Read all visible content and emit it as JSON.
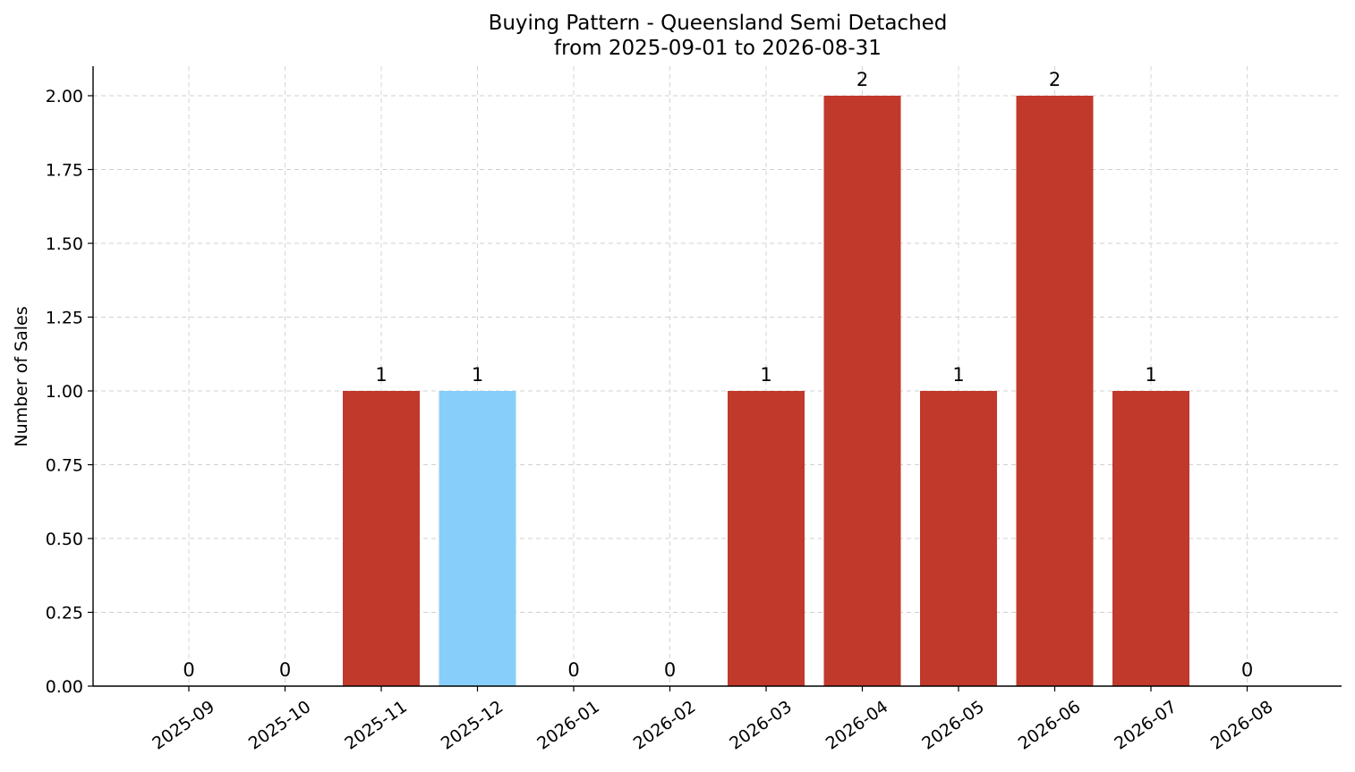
{
  "chart_data": {
    "type": "bar",
    "title": "Buying Pattern - Queensland Semi Detached",
    "subtitle": "from 2025-09-01 to 2026-08-31",
    "xlabel": "",
    "ylabel": "Number of Sales",
    "ylim": [
      0,
      2.1
    ],
    "yticks": [
      "0.00",
      "0.25",
      "0.50",
      "0.75",
      "1.00",
      "1.25",
      "1.50",
      "1.75",
      "2.00"
    ],
    "grid": true,
    "categories": [
      "2025-09",
      "2025-10",
      "2025-11",
      "2025-12",
      "2026-01",
      "2026-02",
      "2026-03",
      "2026-04",
      "2026-05",
      "2026-06",
      "2026-07",
      "2026-08"
    ],
    "values": [
      0,
      0,
      1,
      1,
      0,
      0,
      1,
      2,
      1,
      2,
      1,
      0
    ],
    "data_labels": [
      "0",
      "0",
      "1",
      "1",
      "0",
      "0",
      "1",
      "2",
      "1",
      "2",
      "1",
      "0"
    ],
    "colors": [
      "#c0392b",
      "#c0392b",
      "#c0392b",
      "#87cefa",
      "#c0392b",
      "#c0392b",
      "#c0392b",
      "#c0392b",
      "#c0392b",
      "#c0392b",
      "#c0392b",
      "#c0392b"
    ],
    "highlight_category": "2025-12",
    "bar_color": "#c0392b",
    "highlight_color": "#87cefa"
  }
}
